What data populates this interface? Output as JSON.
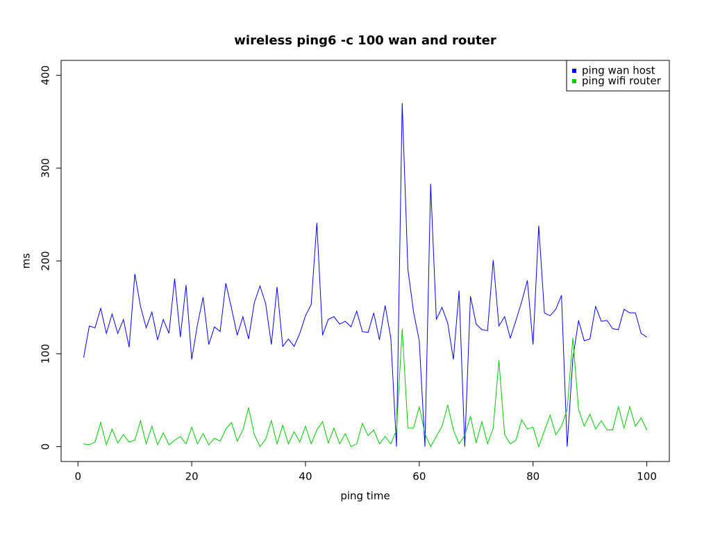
{
  "chart_data": {
    "type": "line",
    "title": "wireless ping6 -c 100 wan and router",
    "xlabel": "ping time",
    "ylabel": "ms",
    "x": [
      1,
      2,
      3,
      4,
      5,
      6,
      7,
      8,
      9,
      10,
      11,
      12,
      13,
      14,
      15,
      16,
      17,
      18,
      19,
      20,
      21,
      22,
      23,
      24,
      25,
      26,
      27,
      28,
      29,
      30,
      31,
      32,
      33,
      34,
      35,
      36,
      37,
      38,
      39,
      40,
      41,
      42,
      43,
      44,
      45,
      46,
      47,
      48,
      49,
      50,
      51,
      52,
      53,
      54,
      55,
      56,
      57,
      58,
      59,
      60,
      61,
      62,
      63,
      64,
      65,
      66,
      67,
      68,
      69,
      70,
      71,
      72,
      73,
      74,
      75,
      76,
      77,
      78,
      79,
      80,
      81,
      82,
      83,
      84,
      85,
      86,
      87,
      88,
      89,
      90,
      91,
      92,
      93,
      94,
      95,
      96,
      97,
      98,
      99,
      100
    ],
    "series": [
      {
        "name": "ping wan host",
        "color": "#0000ff",
        "values": [
          96,
          130,
          128,
          149,
          122,
          143,
          122,
          137,
          107,
          186,
          151,
          128,
          145,
          115,
          137,
          122,
          181,
          118,
          174,
          94,
          131,
          161,
          110,
          129,
          124,
          176,
          149,
          120,
          140,
          116,
          155,
          173,
          154,
          110,
          172,
          108,
          116,
          108,
          122,
          141,
          153,
          241,
          120,
          137,
          140,
          132,
          135,
          129,
          146,
          124,
          123,
          144,
          115,
          152,
          117,
          0,
          370,
          191,
          145,
          114,
          0,
          283,
          137,
          150,
          133,
          94,
          168,
          0,
          162,
          132,
          126,
          125,
          201,
          130,
          140,
          117,
          136,
          156,
          179,
          110,
          238,
          144,
          141,
          148,
          163,
          0,
          95,
          136,
          114,
          116,
          151,
          135,
          136,
          127,
          126,
          148,
          144,
          144,
          122,
          118
        ]
      },
      {
        "name": "ping wifi router",
        "color": "#00cc00",
        "values": [
          3,
          2,
          5,
          26,
          2,
          19,
          4,
          13,
          5,
          7,
          28,
          3,
          22,
          2,
          15,
          2,
          7,
          11,
          3,
          21,
          3,
          14,
          2,
          9,
          6,
          19,
          26,
          6,
          18,
          42,
          13,
          0,
          8,
          28,
          3,
          23,
          3,
          16,
          5,
          22,
          3,
          18,
          27,
          4,
          20,
          3,
          14,
          0,
          3,
          25,
          12,
          18,
          3,
          11,
          3,
          18,
          127,
          20,
          20,
          43,
          14,
          0,
          11,
          22,
          45,
          18,
          3,
          12,
          33,
          4,
          27,
          3,
          20,
          93,
          13,
          3,
          7,
          29,
          19,
          21,
          0,
          17,
          34,
          13,
          22,
          40,
          117,
          40,
          22,
          35,
          19,
          28,
          18,
          18,
          43,
          20,
          43,
          22,
          31,
          18
        ]
      }
    ],
    "xlim": [
      -2.96,
      103.96
    ],
    "ylim": [
      -16,
      416
    ],
    "xticks": [
      0,
      20,
      40,
      60,
      80,
      100
    ],
    "yticks": [
      0,
      100,
      200,
      300,
      400
    ],
    "legend": "topright"
  }
}
